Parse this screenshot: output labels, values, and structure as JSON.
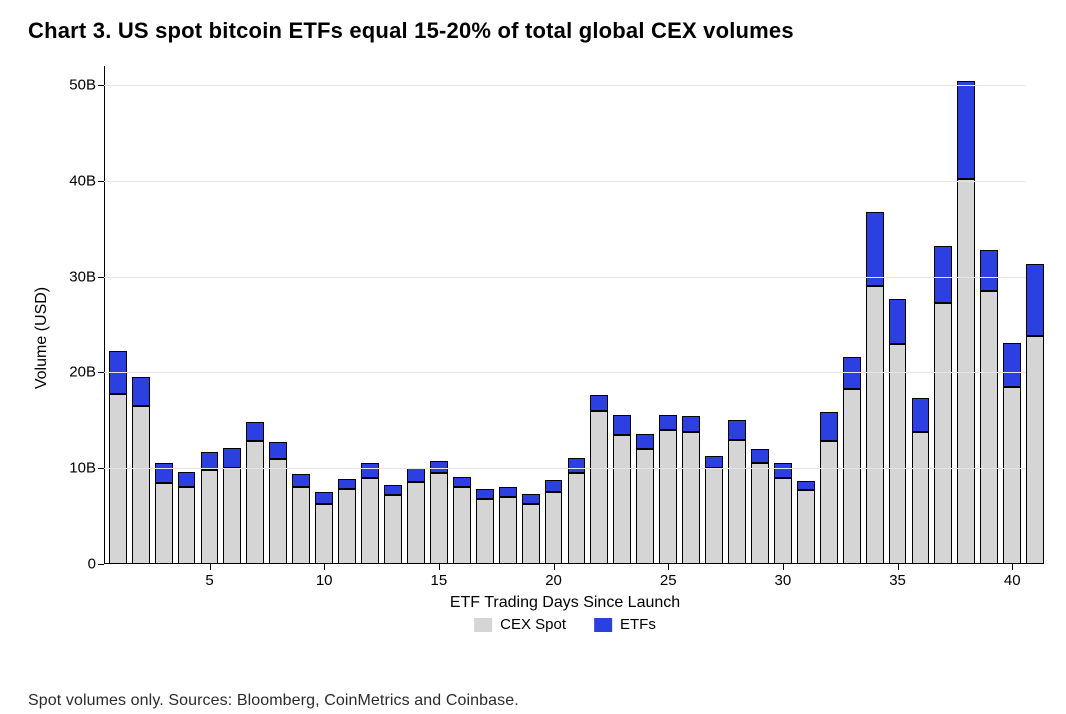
{
  "title": "Chart 3. US spot bitcoin ETFs equal 15-20% of total global CEX volumes",
  "footnote": "Spot volumes only. Sources: Bloomberg, CoinMetrics and Coinbase.",
  "chart": {
    "type": "stacked-bar",
    "x_axis": {
      "title": "ETF Trading Days Since Launch",
      "title_fontsize": 16,
      "ticks": [
        5,
        10,
        15,
        20,
        25,
        30,
        35,
        40
      ],
      "xlim": [
        0.4,
        40.6
      ],
      "tick_fontsize": 15
    },
    "y_axis": {
      "title": "Volume (USD)",
      "title_fontsize": 16,
      "ticks": [
        0,
        10,
        20,
        30,
        40,
        50
      ],
      "tick_labels": [
        "0",
        "10B",
        "20B",
        "30B",
        "40B",
        "50B"
      ],
      "ylim": [
        0,
        52
      ],
      "tick_fontsize": 15,
      "grid_color": "#e6e6e6",
      "axis_color": "#000000"
    },
    "bar_width": 0.78,
    "bar_border_color": "#000000",
    "bar_border_width": 0.6,
    "background_color": "#ffffff",
    "series": [
      {
        "key": "cex",
        "label": "CEX Spot",
        "color": "#d5d5d5"
      },
      {
        "key": "etfs",
        "label": "ETFs",
        "color": "#2c3fe0"
      }
    ],
    "data": [
      {
        "x": 1,
        "cex": 17.8,
        "etfs": 4.4
      },
      {
        "x": 2,
        "cex": 16.5,
        "etfs": 3.0
      },
      {
        "x": 3,
        "cex": 8.5,
        "etfs": 2.0
      },
      {
        "x": 4,
        "cex": 8.0,
        "etfs": 1.6
      },
      {
        "x": 5,
        "cex": 9.8,
        "etfs": 1.9
      },
      {
        "x": 6,
        "cex": 10.0,
        "etfs": 2.1
      },
      {
        "x": 7,
        "cex": 12.8,
        "etfs": 2.0
      },
      {
        "x": 8,
        "cex": 11.0,
        "etfs": 1.7
      },
      {
        "x": 9,
        "cex": 8.0,
        "etfs": 1.4
      },
      {
        "x": 10,
        "cex": 6.3,
        "etfs": 1.2
      },
      {
        "x": 11,
        "cex": 7.8,
        "etfs": 1.1
      },
      {
        "x": 12,
        "cex": 9.0,
        "etfs": 1.6
      },
      {
        "x": 13,
        "cex": 7.2,
        "etfs": 1.1
      },
      {
        "x": 14,
        "cex": 8.6,
        "etfs": 1.4
      },
      {
        "x": 15,
        "cex": 9.5,
        "etfs": 1.3
      },
      {
        "x": 16,
        "cex": 8.0,
        "etfs": 1.1
      },
      {
        "x": 17,
        "cex": 6.8,
        "etfs": 1.0
      },
      {
        "x": 18,
        "cex": 7.0,
        "etfs": 1.0
      },
      {
        "x": 19,
        "cex": 6.3,
        "etfs": 1.0
      },
      {
        "x": 20,
        "cex": 7.5,
        "etfs": 1.3
      },
      {
        "x": 21,
        "cex": 9.5,
        "etfs": 1.6
      },
      {
        "x": 22,
        "cex": 16.0,
        "etfs": 1.6
      },
      {
        "x": 23,
        "cex": 13.5,
        "etfs": 2.1
      },
      {
        "x": 24,
        "cex": 12.0,
        "etfs": 1.6
      },
      {
        "x": 25,
        "cex": 14.0,
        "etfs": 1.6
      },
      {
        "x": 26,
        "cex": 13.8,
        "etfs": 1.7
      },
      {
        "x": 27,
        "cex": 10.0,
        "etfs": 1.3
      },
      {
        "x": 28,
        "cex": 13.0,
        "etfs": 2.0
      },
      {
        "x": 29,
        "cex": 10.5,
        "etfs": 1.5
      },
      {
        "x": 30,
        "cex": 9.0,
        "etfs": 1.5
      },
      {
        "x": 31,
        "cex": 7.7,
        "etfs": 1.0
      },
      {
        "x": 32,
        "cex": 12.8,
        "etfs": 3.1
      },
      {
        "x": 33,
        "cex": 18.3,
        "etfs": 3.3
      },
      {
        "x": 34,
        "cex": 29.0,
        "etfs": 7.8
      },
      {
        "x": 35,
        "cex": 23.0,
        "etfs": 4.7
      },
      {
        "x": 36,
        "cex": 13.8,
        "etfs": 3.5
      },
      {
        "x": 37,
        "cex": 27.3,
        "etfs": 5.9
      },
      {
        "x": 38,
        "cex": 40.2,
        "etfs": 10.2
      },
      {
        "x": 39,
        "cex": 28.5,
        "etfs": 4.3
      },
      {
        "x": 40,
        "cex": 18.5,
        "etfs": 4.6
      },
      {
        "x": 41,
        "cex": 23.8,
        "etfs": 7.5
      }
    ]
  },
  "legend_fontsize": 15
}
